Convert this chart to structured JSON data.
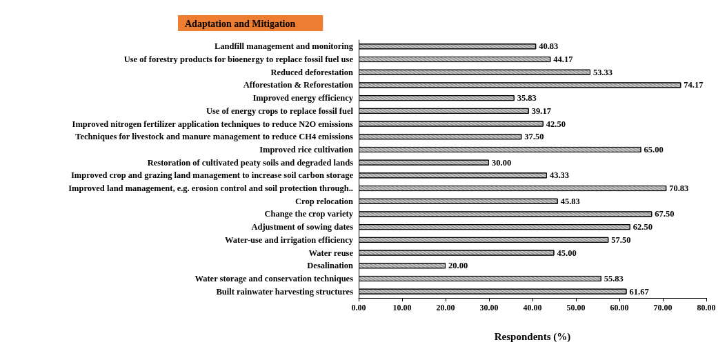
{
  "chart_data": {
    "type": "bar",
    "orientation": "horizontal",
    "title": "Adaptation and Mitigation",
    "xlabel": "Respondents (%)",
    "categories": [
      "Landfill management and monitoring",
      "Use of forestry products for bioenergy to replace fossil fuel use",
      "Reduced deforestation",
      "Afforestation & Reforestation",
      "Improved energy efficiency",
      "Use of energy crops to replace fossil fuel",
      "Improved nitrogen fertilizer application techniques to reduce N2O emissions",
      "Techniques for livestock and manure management to reduce CH4 emissions",
      "Improved rice cultivation",
      "Restoration of cultivated peaty soils and degraded lands",
      "Improved crop and grazing land management to increase soil carbon storage",
      "Improved land management, e.g. erosion control and soil protection through..",
      "Crop relocation",
      "Change the crop variety",
      "Adjustment of sowing dates",
      "Water-use and irrigation efficiency",
      "Water reuse",
      "Desalination",
      "Water storage and conservation techniques",
      "Built rainwater harvesting structures"
    ],
    "values": [
      40.83,
      44.17,
      53.33,
      74.17,
      35.83,
      39.17,
      42.5,
      37.5,
      65,
      30,
      43.33,
      70.83,
      45.83,
      67.5,
      62.5,
      57.5,
      45,
      20,
      55.83,
      61.67
    ],
    "value_labels": [
      "40.83",
      "44.17",
      "53.33",
      "74.17",
      "35.83",
      "39.17",
      "42.50",
      "37.50",
      "65.00",
      "30.00",
      "43.33",
      "70.83",
      "45.83",
      "67.50",
      "62.50",
      "57.50",
      "45.00",
      "20.00",
      "55.83",
      "61.67"
    ],
    "color": "#c8c8c8",
    "xlim": [
      0,
      80
    ],
    "xticks": [
      {
        "value": 0,
        "label": "0.00"
      },
      {
        "value": 10,
        "label": "10.00"
      },
      {
        "value": 20,
        "label": "20.00"
      },
      {
        "value": 30,
        "label": "30.00"
      },
      {
        "value": 40,
        "label": "40.00"
      },
      {
        "value": 50,
        "label": "50.00"
      },
      {
        "value": 60,
        "label": "60.00"
      },
      {
        "value": 70,
        "label": "70.00"
      },
      {
        "value": 80,
        "label": "80.00"
      }
    ],
    "grid": false
  }
}
